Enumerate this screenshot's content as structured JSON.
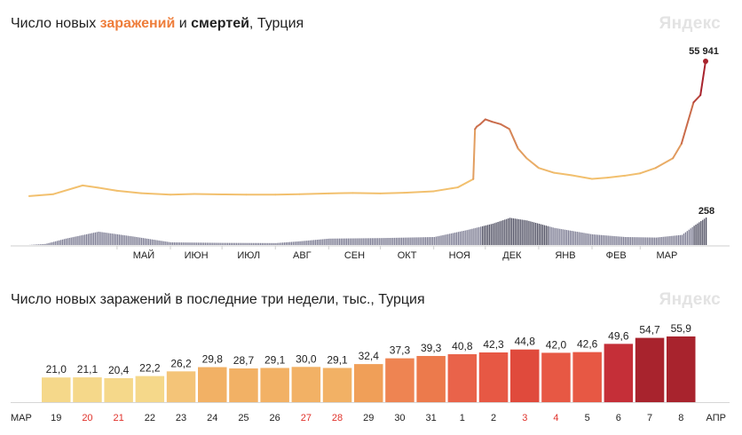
{
  "top_chart": {
    "title_parts": [
      "Число новых ",
      "заражений",
      " и ",
      "смертей",
      ", Турция"
    ],
    "logo": "Яндекс",
    "infection_label": "55 941",
    "death_label": "258",
    "months": [
      "МАЙ",
      "ИЮН",
      "ИЮЛ",
      "АВГ",
      "СЕН",
      "ОКТ",
      "НОЯ",
      "ДЕК",
      "ЯНВ",
      "ФЕВ",
      "МАР"
    ],
    "colors": {
      "infections_low": "#f2c06e",
      "infections_high": "#a8232d",
      "deaths": "#6b6b85"
    }
  },
  "bottom_chart": {
    "title": "Число новых заражений в последние три недели, тыс., Турция",
    "logo": "Яндекс",
    "left_month": "МАР",
    "right_month": "АПР"
  },
  "chart_data": [
    {
      "type": "line",
      "title": "Число новых заражений и смертей, Турция",
      "series": [
        {
          "name": "заражений",
          "x": [
            "2020-03-11",
            "2020-03-25",
            "2020-04-11",
            "2020-04-20",
            "2020-05-01",
            "2020-05-15",
            "2020-06-01",
            "2020-06-15",
            "2020-07-01",
            "2020-07-15",
            "2020-08-01",
            "2020-08-15",
            "2020-09-01",
            "2020-09-15",
            "2020-10-01",
            "2020-10-15",
            "2020-11-01",
            "2020-11-15",
            "2020-11-24",
            "2020-11-25",
            "2020-11-26",
            "2020-11-28",
            "2020-12-01",
            "2020-12-05",
            "2020-12-10",
            "2020-12-15",
            "2020-12-20",
            "2020-12-25",
            "2021-01-01",
            "2021-01-10",
            "2021-01-20",
            "2021-02-01",
            "2021-02-10",
            "2021-02-20",
            "2021-03-01",
            "2021-03-10",
            "2021-03-20",
            "2021-03-25",
            "2021-04-01",
            "2021-04-05",
            "2021-04-08"
          ],
          "values": [
            400,
            1200,
            4800,
            3900,
            2600,
            1600,
            1000,
            1300,
            1100,
            1000,
            1000,
            1200,
            1500,
            1700,
            1500,
            1800,
            2400,
            4000,
            7400,
            28000,
            29000,
            30000,
            32000,
            31000,
            30000,
            28000,
            20000,
            16000,
            12000,
            10000,
            9000,
            7500,
            8000,
            8800,
            9800,
            12000,
            16000,
            22000,
            39000,
            42000,
            55941
          ]
        },
        {
          "name": "смертей",
          "x": [
            "2020-03-11",
            "2020-03-20",
            "2020-04-01",
            "2020-04-20",
            "2020-05-10",
            "2020-06-01",
            "2020-07-01",
            "2020-08-01",
            "2020-08-15",
            "2020-09-01",
            "2020-10-01",
            "2020-11-01",
            "2020-11-20",
            "2020-12-05",
            "2020-12-15",
            "2020-12-25",
            "2021-01-10",
            "2021-02-01",
            "2021-02-20",
            "2021-03-10",
            "2021-03-25",
            "2021-04-01",
            "2021-04-08"
          ],
          "values": [
            1,
            10,
            60,
            125,
            80,
            25,
            20,
            18,
            35,
            60,
            65,
            75,
            140,
            200,
            255,
            230,
            160,
            100,
            75,
            70,
            95,
            180,
            258
          ]
        }
      ]
    },
    {
      "type": "bar",
      "title": "Число новых заражений в последние три недели, тыс., Турция",
      "categories": [
        "19",
        "20",
        "21",
        "22",
        "23",
        "24",
        "25",
        "26",
        "27",
        "28",
        "29",
        "30",
        "31",
        "1",
        "2",
        "3",
        "4",
        "5",
        "6",
        "7",
        "8"
      ],
      "values": [
        21.0,
        21.1,
        20.4,
        22.2,
        26.2,
        29.8,
        28.7,
        29.1,
        30.0,
        29.1,
        32.4,
        37.3,
        39.3,
        40.8,
        42.3,
        44.8,
        42.0,
        42.6,
        49.6,
        54.7,
        55.9
      ],
      "labels": [
        "21,0",
        "21,1",
        "20,4",
        "22,2",
        "26,2",
        "29,8",
        "28,7",
        "29,1",
        "30,0",
        "29,1",
        "32,4",
        "37,3",
        "39,3",
        "40,8",
        "42,3",
        "44,8",
        "42,0",
        "42,6",
        "49,6",
        "54,7",
        "55,9"
      ],
      "weekend": [
        false,
        true,
        true,
        false,
        false,
        false,
        false,
        false,
        true,
        true,
        false,
        false,
        false,
        false,
        false,
        true,
        true,
        false,
        false,
        false,
        false
      ],
      "colors": [
        "#f5d88a",
        "#f5d88a",
        "#f5d88a",
        "#f5d88a",
        "#f4c478",
        "#f2b165",
        "#f2b165",
        "#f2b165",
        "#f2b165",
        "#f2b165",
        "#f09f58",
        "#ee8452",
        "#ec7a4c",
        "#e9634a",
        "#e75844",
        "#e04a3c",
        "#e75844",
        "#e75844",
        "#c52f38",
        "#a8232d",
        "#a8232d"
      ],
      "weekend_color": "#e0312a"
    }
  ]
}
